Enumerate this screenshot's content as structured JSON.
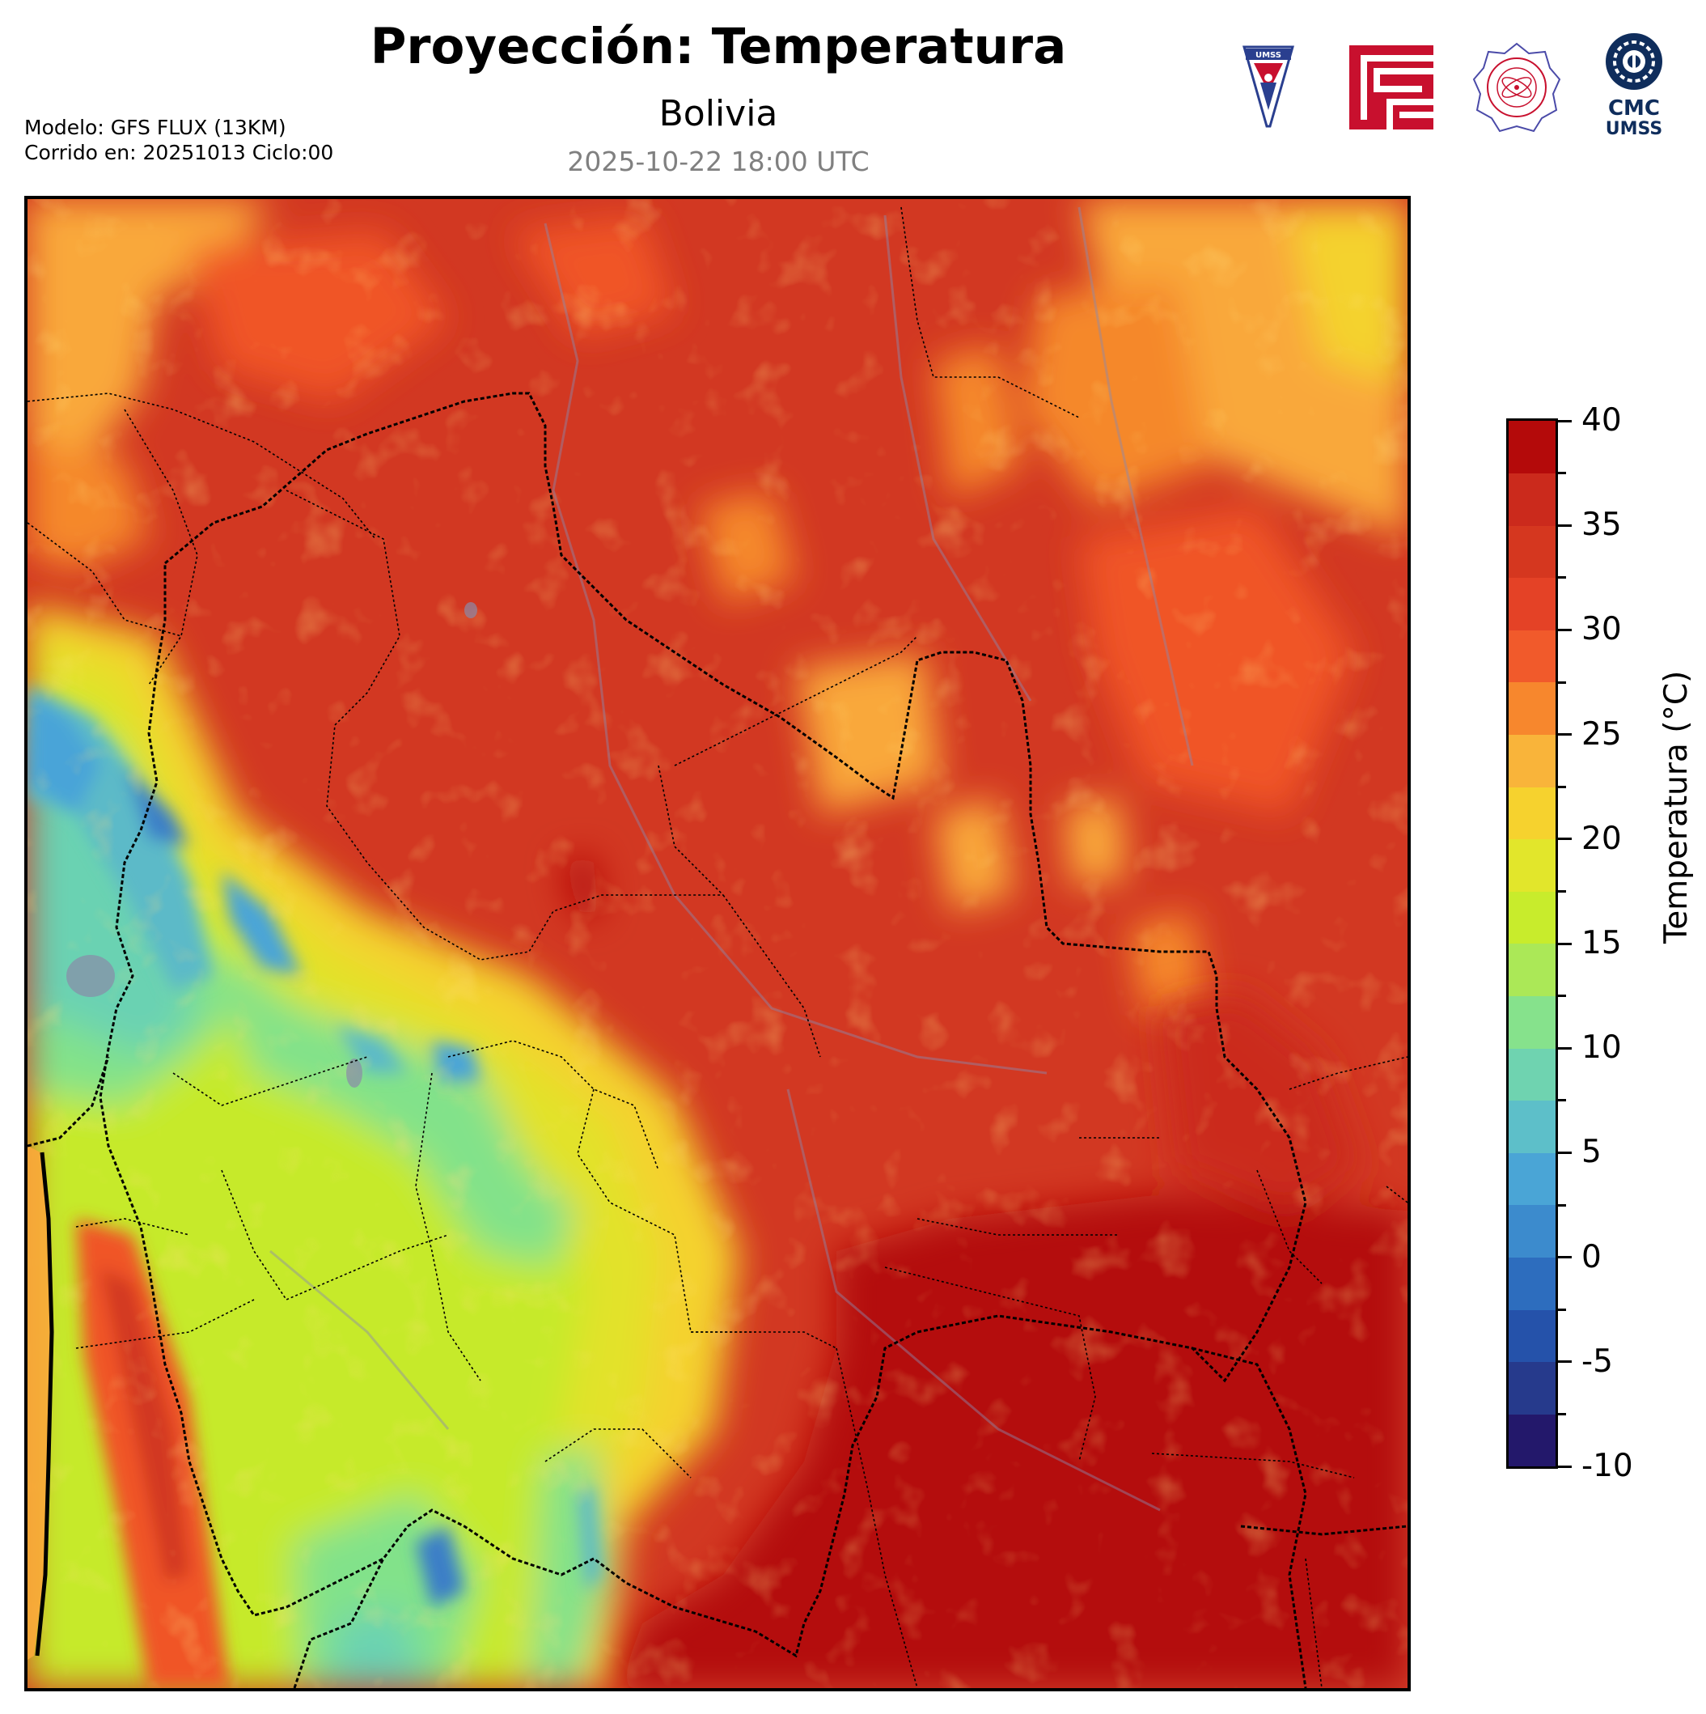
{
  "header": {
    "title": "Proyección: Temperatura",
    "subtitle": "Bolivia",
    "datetime": "2025-10-22 18:00 UTC",
    "model_line1": "Modelo: GFS FLUX (13KM)",
    "model_line2": "Corrido en: 20251013 Ciclo:00"
  },
  "logos": [
    {
      "name": "umss-shield-logo",
      "text": "UMSS"
    },
    {
      "name": "red-glyph-logo",
      "text": ""
    },
    {
      "name": "departamento-fisica-seal-logo",
      "text": "DEPARTAMENTO DE FÍSICA"
    },
    {
      "name": "cmc-umss-logo",
      "text": "CMC UMSS"
    }
  ],
  "map": {
    "region": "Bolivia",
    "variable": "Temperatura",
    "colors": {
      "hot": "#b40a0a",
      "warm_red": "#d23822",
      "orange_red": "#f05528",
      "orange": "#f5882c",
      "light_orange": "#f9a83a",
      "yellow": "#f4d22e",
      "yellow_green": "#e2e22a",
      "lime": "#c6ea2c",
      "light_green": "#82e28a",
      "aqua": "#6ad2b2",
      "cyan": "#5cbac8",
      "sky": "#48a4d8",
      "blue": "#3a7ec8",
      "deep_blue": "#2a52a8"
    }
  },
  "colorbar": {
    "label": "Temperatura (°C)",
    "min": -10,
    "max": 40,
    "step": 2.5,
    "tick_labels": [
      "40",
      "35",
      "30",
      "25",
      "20",
      "15",
      "10",
      "5",
      "0",
      "-5",
      "-10"
    ],
    "tick_values": [
      40,
      35,
      30,
      25,
      20,
      15,
      10,
      5,
      0,
      -5,
      -10
    ],
    "bands": [
      {
        "from": -10,
        "to": -7.5,
        "color": "#23186b"
      },
      {
        "from": -7.5,
        "to": -5,
        "color": "#263a8c"
      },
      {
        "from": -5,
        "to": -2.5,
        "color": "#2552aa"
      },
      {
        "from": -2.5,
        "to": 0,
        "color": "#2d6dbe"
      },
      {
        "from": 0,
        "to": 2.5,
        "color": "#3c8bcd"
      },
      {
        "from": 2.5,
        "to": 5,
        "color": "#4aa5d6"
      },
      {
        "from": 5,
        "to": 7.5,
        "color": "#5dbfc9"
      },
      {
        "from": 7.5,
        "to": 10,
        "color": "#6fd3b0"
      },
      {
        "from": 10,
        "to": 12.5,
        "color": "#86e28c"
      },
      {
        "from": 12.5,
        "to": 15,
        "color": "#abe857"
      },
      {
        "from": 15,
        "to": 17.5,
        "color": "#c8ec2c"
      },
      {
        "from": 17.5,
        "to": 20,
        "color": "#e2e62b"
      },
      {
        "from": 20,
        "to": 22.5,
        "color": "#f6d22e"
      },
      {
        "from": 22.5,
        "to": 25,
        "color": "#f9b43a"
      },
      {
        "from": 25,
        "to": 27.5,
        "color": "#f7872d"
      },
      {
        "from": 27.5,
        "to": 30,
        "color": "#f15a2b"
      },
      {
        "from": 30,
        "to": 32.5,
        "color": "#e44226"
      },
      {
        "from": 32.5,
        "to": 35,
        "color": "#d5371f"
      },
      {
        "from": 35,
        "to": 37.5,
        "color": "#cb2a1c"
      },
      {
        "from": 37.5,
        "to": 40,
        "color": "#b40a0a"
      }
    ]
  }
}
